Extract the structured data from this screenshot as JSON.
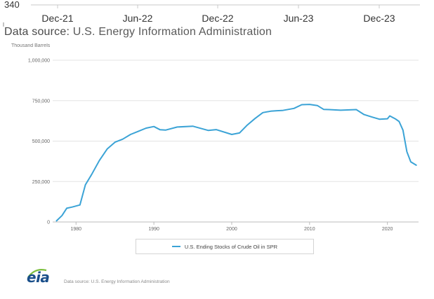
{
  "top_strip": {
    "y_tick": "340",
    "x_ticks": [
      "Dec-21",
      "Jun-22",
      "Dec-22",
      "Jun-23",
      "Dec-23"
    ],
    "source_label": "Data source:",
    "source_text": "U.S. Energy Information Administration"
  },
  "chart_data": {
    "type": "line",
    "title": "",
    "ylabel": "Thousand Barrels",
    "xlabel": "",
    "ylim": [
      0,
      1000000
    ],
    "xlim": [
      1977,
      2024
    ],
    "y_ticks": [
      "0",
      "250,000",
      "500,000",
      "750,000",
      "1,000,000"
    ],
    "y_tick_values": [
      0,
      250000,
      500000,
      750000,
      1000000
    ],
    "x_ticks": [
      "1980",
      "1990",
      "2000",
      "2010",
      "2020"
    ],
    "x_tick_values": [
      1980,
      1990,
      2000,
      2010,
      2020
    ],
    "grid": true,
    "legend_position": "bottom",
    "line_color": "#3ba3d6",
    "series": [
      {
        "name": "U.S. Ending Stocks of Crude Oil in SPR",
        "x": [
          1977.5,
          1978.2,
          1978.8,
          1979.5,
          1980.5,
          1981.2,
          1982,
          1983,
          1984,
          1985,
          1986,
          1987,
          1988,
          1989,
          1990,
          1990.8,
          1991.5,
          1993,
          1995,
          1997,
          1998,
          2000,
          2001,
          2002,
          2003,
          2004,
          2005,
          2005.8,
          2006.5,
          2008,
          2009,
          2010,
          2011,
          2011.8,
          2012.5,
          2014,
          2016,
          2017,
          2018,
          2019,
          2020,
          2020.3,
          2021,
          2021.5,
          2022,
          2022.5,
          2023,
          2023.7
        ],
        "values": [
          7000,
          40000,
          85000,
          92000,
          105000,
          230000,
          293000,
          380000,
          451000,
          493000,
          512000,
          541000,
          560000,
          580000,
          590000,
          570000,
          568000,
          587000,
          592000,
          566000,
          571000,
          541000,
          550000,
          599000,
          640000,
          676000,
          685000,
          688000,
          689000,
          702000,
          725000,
          727000,
          720000,
          696000,
          695000,
          691000,
          695000,
          664000,
          649000,
          635000,
          638000,
          656000,
          638000,
          621000,
          568000,
          434000,
          372000,
          351000
        ]
      }
    ]
  },
  "legend": {
    "label": "U.S. Ending Stocks of Crude Oil in SPR"
  },
  "footer": {
    "logo_text": "eia",
    "source_text": "Data source: U.S. Energy Information Administration"
  }
}
